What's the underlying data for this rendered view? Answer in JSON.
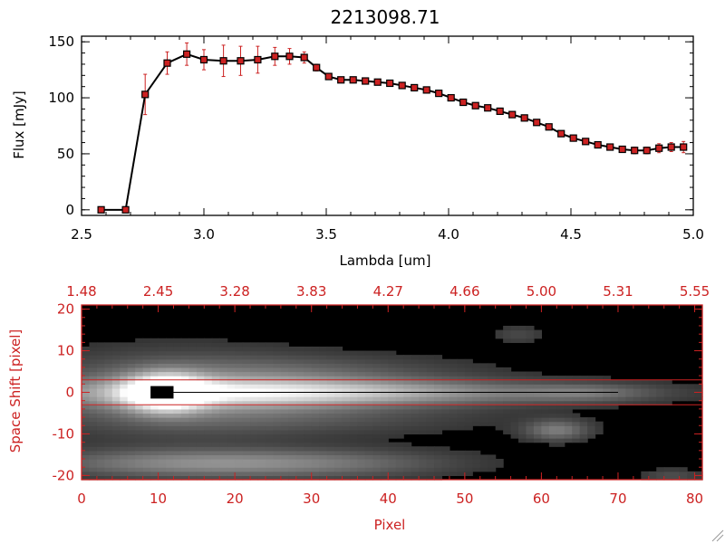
{
  "colors": {
    "axis": "#000000",
    "line": "#000000",
    "error_bar": "#cc2222",
    "marker_fill": "#cc2222",
    "marker_edge": "#000000",
    "red_axis": "#cc2222",
    "image_bg": "#000000"
  },
  "chart_data": [
    {
      "type": "line",
      "title": "2213098.71",
      "xlabel": "Lambda [um]",
      "ylabel": "Flux [mJy]",
      "xlim": [
        2.5,
        5.0
      ],
      "ylim": [
        -5,
        155
      ],
      "xticks": [
        2.5,
        3.0,
        3.5,
        4.0,
        4.5,
        5.0
      ],
      "xtick_labels": [
        "2.5",
        "3.0",
        "3.5",
        "4.0",
        "4.5",
        "5.0"
      ],
      "yticks": [
        0,
        50,
        100,
        150
      ],
      "ytick_labels": [
        "0",
        "50",
        "100",
        "150"
      ],
      "series": [
        {
          "x": [
            2.58,
            2.68,
            2.76,
            2.85,
            2.93,
            3.0,
            3.08,
            3.15,
            3.22,
            3.29,
            3.35,
            3.41,
            3.46,
            3.51,
            3.56,
            3.61,
            3.66,
            3.71,
            3.76,
            3.81,
            3.86,
            3.91,
            3.96,
            4.01,
            4.06,
            4.11,
            4.16,
            4.21,
            4.26,
            4.31,
            4.36,
            4.41,
            4.46,
            4.51,
            4.56,
            4.61,
            4.66,
            4.71,
            4.76,
            4.81,
            4.86,
            4.91,
            4.96
          ],
          "y": [
            0,
            0,
            103,
            131,
            139,
            134,
            133,
            133,
            134,
            137,
            137,
            136,
            127,
            119,
            116,
            116,
            115,
            114,
            113,
            111,
            109,
            107,
            104,
            100,
            96,
            93,
            91,
            88,
            85,
            82,
            78,
            74,
            68,
            64,
            61,
            58,
            56,
            54,
            53,
            53,
            55,
            56,
            56
          ],
          "yerr": [
            2,
            2,
            18,
            10,
            10,
            9,
            14,
            13,
            12,
            8,
            7,
            5,
            3,
            2,
            2,
            2,
            2,
            2,
            2,
            2,
            2,
            2,
            2,
            2,
            2,
            2,
            2,
            2,
            2,
            2,
            2,
            2,
            2,
            2,
            2,
            2,
            2,
            2,
            3,
            3,
            4,
            4,
            5
          ]
        }
      ]
    },
    {
      "type": "heatmap",
      "xlabel": "Pixel",
      "ylabel": "Space Shift [pixel]",
      "xlim": [
        0,
        81
      ],
      "ylim": [
        -21,
        21
      ],
      "xticks": [
        0,
        10,
        20,
        30,
        40,
        50,
        60,
        70,
        80
      ],
      "xtick_labels": [
        "0",
        "10",
        "20",
        "30",
        "40",
        "50",
        "60",
        "70",
        "80"
      ],
      "yticks": [
        -20,
        -10,
        0,
        10,
        20
      ],
      "ytick_labels": [
        "-20",
        "-10",
        "0",
        "10",
        "20"
      ],
      "top_tick_labels": [
        "1.48",
        "2.45",
        "3.28",
        "3.83",
        "4.27",
        "4.66",
        "5.00",
        "5.31",
        "5.55"
      ],
      "reference_lines_y": [
        3,
        -3
      ],
      "trace_line": {
        "x": [
          12,
          70
        ],
        "y": 0
      },
      "masked_block": {
        "x": [
          9,
          12
        ],
        "y": [
          -1.5,
          1.5
        ]
      },
      "blobs": [
        {
          "x": 11,
          "y": 0,
          "sx": 3.5,
          "sy": 3,
          "amp": 1.0
        },
        {
          "x": 22,
          "y": 0,
          "sx": 18,
          "sy": 2.5,
          "amp": 0.55
        },
        {
          "x": 45,
          "y": 0,
          "sx": 22,
          "sy": 2.0,
          "amp": 0.28
        },
        {
          "x": 66,
          "y": 0,
          "sx": 6,
          "sy": 1.5,
          "amp": 0.2
        },
        {
          "x": 12,
          "y": 0,
          "sx": 14,
          "sy": 7,
          "amp": 0.3
        },
        {
          "x": 30,
          "y": 5,
          "sx": 16,
          "sy": 3,
          "amp": 0.18
        },
        {
          "x": 30,
          "y": -6,
          "sx": 18,
          "sy": 3,
          "amp": 0.16
        },
        {
          "x": 14,
          "y": -17,
          "sx": 14,
          "sy": 2.5,
          "amp": 0.42
        },
        {
          "x": 35,
          "y": -17,
          "sx": 12,
          "sy": 2.5,
          "amp": 0.22
        },
        {
          "x": 62,
          "y": -9,
          "sx": 3,
          "sy": 1.8,
          "amp": 0.38
        },
        {
          "x": 57,
          "y": 14,
          "sx": 2.5,
          "sy": 1.5,
          "amp": 0.15
        },
        {
          "x": 77,
          "y": -20,
          "sx": 3,
          "sy": 1.2,
          "amp": 0.18
        }
      ]
    }
  ]
}
